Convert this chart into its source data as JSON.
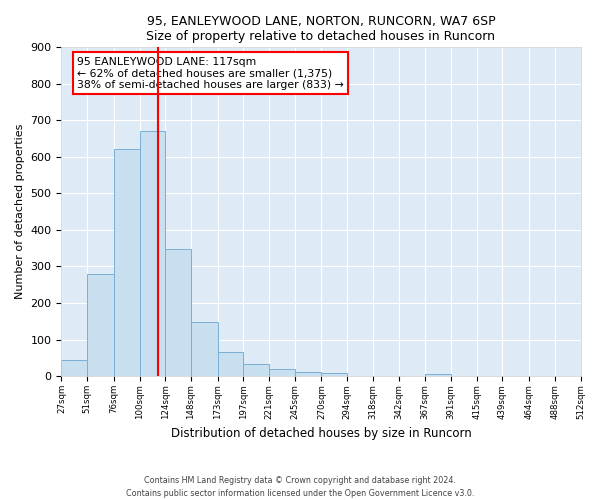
{
  "title": "95, EANLEYWOOD LANE, NORTON, RUNCORN, WA7 6SP",
  "subtitle": "Size of property relative to detached houses in Runcorn",
  "xlabel": "Distribution of detached houses by size in Runcorn",
  "ylabel": "Number of detached properties",
  "bar_color": "#c8dff0",
  "bar_edge_color": "#7aafd4",
  "plot_bg_color": "#deeaf5",
  "fig_bg_color": "#ffffff",
  "vline_x": 117,
  "vline_color": "red",
  "annotation_title": "95 EANLEYWOOD LANE: 117sqm",
  "annotation_line1": "← 62% of detached houses are smaller (1,375)",
  "annotation_line2": "38% of semi-detached houses are larger (833) →",
  "bin_edges": [
    27,
    51,
    76,
    100,
    124,
    148,
    173,
    197,
    221,
    245,
    270,
    294,
    318,
    342,
    367,
    391,
    415,
    439,
    464,
    488,
    512
  ],
  "bin_counts": [
    44,
    280,
    622,
    670,
    347,
    148,
    65,
    32,
    20,
    10,
    8,
    0,
    0,
    0,
    6,
    0,
    0,
    0,
    0,
    0
  ],
  "ylim": [
    0,
    900
  ],
  "yticks": [
    0,
    100,
    200,
    300,
    400,
    500,
    600,
    700,
    800,
    900
  ],
  "footer1": "Contains HM Land Registry data © Crown copyright and database right 2024.",
  "footer2": "Contains public sector information licensed under the Open Government Licence v3.0."
}
